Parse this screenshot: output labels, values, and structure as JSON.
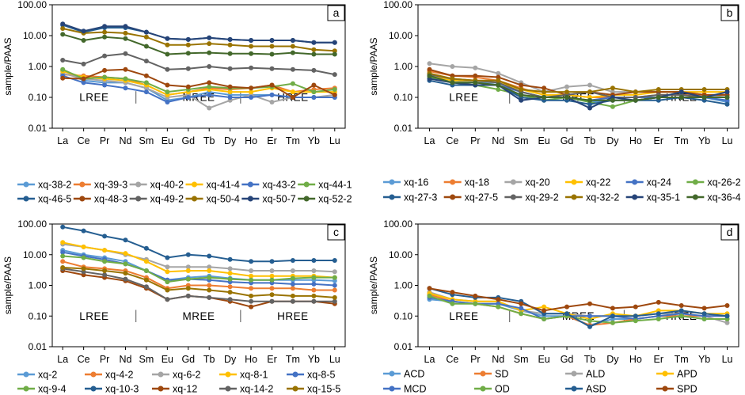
{
  "chart_data": [
    {
      "type": "line",
      "panel_label": "a",
      "ylabel": "sample/PAAS",
      "yscale": "log",
      "ylim": [
        0.01,
        100
      ],
      "yticks": [
        "100.00",
        "10.00",
        "1.00",
        "0.10",
        "0.01"
      ],
      "categories": [
        "La",
        "Ce",
        "Pr",
        "Nd",
        "Sm",
        "Eu",
        "Gd",
        "Tb",
        "Dy",
        "Ho",
        "Er",
        "Tm",
        "Yb",
        "Lu"
      ],
      "groups": [
        "LREE",
        "MREE",
        "HREE"
      ],
      "series": [
        {
          "name": "xq-38-2",
          "color": "#5b9bd5",
          "values": [
            0.75,
            0.35,
            0.3,
            0.3,
            0.2,
            0.08,
            0.1,
            0.15,
            0.12,
            0.12,
            0.12,
            0.1,
            0.1,
            0.1
          ]
        },
        {
          "name": "xq-39-3",
          "color": "#ed7d31",
          "values": [
            0.55,
            0.5,
            0.45,
            0.4,
            0.25,
            0.12,
            0.15,
            0.2,
            0.18,
            0.2,
            0.25,
            0.15,
            0.18,
            0.2
          ]
        },
        {
          "name": "xq-40-2",
          "color": "#a5a5a5",
          "values": [
            0.6,
            0.4,
            0.35,
            0.3,
            0.2,
            0.1,
            0.12,
            0.045,
            0.08,
            0.12,
            0.07,
            0.1,
            0.1,
            0.12
          ]
        },
        {
          "name": "xq-41-4",
          "color": "#ffc000",
          "values": [
            0.7,
            0.45,
            0.4,
            0.35,
            0.25,
            0.12,
            0.15,
            0.18,
            0.15,
            0.15,
            0.2,
            0.15,
            0.15,
            0.15
          ]
        },
        {
          "name": "xq-43-2",
          "color": "#4472c4",
          "values": [
            0.5,
            0.3,
            0.25,
            0.2,
            0.15,
            0.07,
            0.1,
            0.12,
            0.1,
            0.1,
            0.12,
            0.1,
            0.1,
            0.1
          ]
        },
        {
          "name": "xq-44-1",
          "color": "#70ad47",
          "values": [
            0.8,
            0.4,
            0.45,
            0.4,
            0.3,
            0.15,
            0.18,
            0.22,
            0.2,
            0.2,
            0.22,
            0.28,
            0.15,
            0.18
          ]
        },
        {
          "name": "xq-46-5",
          "color": "#255e91",
          "values": [
            22,
            13,
            18,
            18,
            13,
            8,
            7.5,
            8.5,
            7.5,
            7,
            7,
            7,
            6,
            6
          ]
        },
        {
          "name": "xq-48-3",
          "color": "#9e480e",
          "values": [
            0.42,
            0.4,
            0.75,
            0.8,
            0.5,
            0.25,
            0.22,
            0.3,
            0.22,
            0.2,
            0.25,
            0.1,
            0.25,
            0.12
          ]
        },
        {
          "name": "xq-49-2",
          "color": "#636363",
          "values": [
            1.6,
            1.2,
            2.2,
            2.6,
            1.5,
            0.8,
            0.85,
            1.0,
            0.85,
            0.9,
            0.85,
            0.8,
            0.75,
            0.55
          ]
        },
        {
          "name": "xq-50-4",
          "color": "#997300",
          "values": [
            17,
            12,
            13,
            12,
            9,
            5,
            5,
            5.5,
            5,
            4.5,
            4.5,
            4.5,
            3.5,
            3.2
          ]
        },
        {
          "name": "xq-50-7",
          "color": "#264478",
          "values": [
            24,
            14,
            20,
            20,
            13,
            8,
            7.5,
            8.5,
            7.5,
            7,
            7,
            7,
            6,
            6
          ]
        },
        {
          "name": "xq-52-2",
          "color": "#43682b",
          "values": [
            11,
            7,
            9,
            8,
            4.5,
            2.5,
            2.7,
            2.8,
            2.6,
            2.6,
            2.5,
            2.8,
            2.5,
            2.5
          ]
        }
      ]
    },
    {
      "type": "line",
      "panel_label": "b",
      "ylabel": "sample/PAAS",
      "yscale": "log",
      "ylim": [
        0.01,
        100
      ],
      "yticks": [
        "100.00",
        "10.00",
        "1.00",
        "0.10",
        "0.01"
      ],
      "categories": [
        "La",
        "Ce",
        "Pr",
        "Nd",
        "Sm",
        "Eu",
        "Gd",
        "Tb",
        "Dy",
        "Ho",
        "Er",
        "Tm",
        "Yb",
        "Lu"
      ],
      "groups": [
        "LREE",
        "MREE",
        "HREE"
      ],
      "series": [
        {
          "name": "xq-16",
          "color": "#5b9bd5",
          "values": [
            0.6,
            0.35,
            0.3,
            0.3,
            0.15,
            0.1,
            0.1,
            0.07,
            0.08,
            0.08,
            0.1,
            0.1,
            0.1,
            0.07
          ]
        },
        {
          "name": "xq-18",
          "color": "#ed7d31",
          "values": [
            0.7,
            0.5,
            0.45,
            0.35,
            0.2,
            0.12,
            0.12,
            0.1,
            0.1,
            0.1,
            0.12,
            0.12,
            0.12,
            0.12
          ]
        },
        {
          "name": "xq-20",
          "color": "#a5a5a5",
          "values": [
            1.25,
            1.0,
            0.9,
            0.6,
            0.3,
            0.15,
            0.22,
            0.25,
            0.15,
            0.15,
            0.15,
            0.15,
            0.12,
            0.1
          ]
        },
        {
          "name": "xq-22",
          "color": "#ffc000",
          "values": [
            0.5,
            0.35,
            0.35,
            0.3,
            0.18,
            0.12,
            0.12,
            0.1,
            0.12,
            0.12,
            0.15,
            0.15,
            0.15,
            0.15
          ]
        },
        {
          "name": "xq-24",
          "color": "#4472c4",
          "values": [
            0.5,
            0.3,
            0.3,
            0.25,
            0.15,
            0.1,
            0.1,
            0.08,
            0.1,
            0.1,
            0.1,
            0.1,
            0.1,
            0.08
          ]
        },
        {
          "name": "xq-26-2",
          "color": "#70ad47",
          "values": [
            0.45,
            0.3,
            0.25,
            0.18,
            0.12,
            0.08,
            0.1,
            0.07,
            0.05,
            0.08,
            0.1,
            0.1,
            0.1,
            0.1
          ]
        },
        {
          "name": "xq-27-3",
          "color": "#255e91",
          "values": [
            0.35,
            0.25,
            0.25,
            0.25,
            0.1,
            0.08,
            0.08,
            0.06,
            0.08,
            0.08,
            0.08,
            0.1,
            0.08,
            0.06
          ]
        },
        {
          "name": "xq-27-5",
          "color": "#9e480e",
          "values": [
            0.8,
            0.5,
            0.5,
            0.45,
            0.25,
            0.2,
            0.12,
            0.15,
            0.12,
            0.15,
            0.15,
            0.15,
            0.12,
            0.12
          ]
        },
        {
          "name": "xq-29-2",
          "color": "#636363",
          "values": [
            0.55,
            0.4,
            0.35,
            0.3,
            0.15,
            0.1,
            0.12,
            0.15,
            0.1,
            0.1,
            0.12,
            0.12,
            0.1,
            0.1
          ]
        },
        {
          "name": "xq-32-2",
          "color": "#997300",
          "values": [
            0.6,
            0.4,
            0.35,
            0.35,
            0.18,
            0.15,
            0.15,
            0.15,
            0.2,
            0.15,
            0.18,
            0.18,
            0.18,
            0.18
          ]
        },
        {
          "name": "xq-35-1",
          "color": "#264478",
          "values": [
            0.4,
            0.3,
            0.25,
            0.25,
            0.08,
            0.1,
            0.1,
            0.045,
            0.1,
            0.08,
            0.1,
            0.15,
            0.1,
            0.15
          ]
        },
        {
          "name": "xq-36-4",
          "color": "#43682b",
          "values": [
            0.5,
            0.3,
            0.3,
            0.25,
            0.12,
            0.1,
            0.1,
            0.08,
            0.08,
            0.08,
            0.1,
            0.1,
            0.1,
            0.1
          ]
        }
      ]
    },
    {
      "type": "line",
      "panel_label": "c",
      "ylabel": "sample/PAAS",
      "yscale": "log",
      "ylim": [
        0.01,
        100
      ],
      "yticks": [
        "100.00",
        "10.00",
        "1.00",
        "0.10",
        "0.01"
      ],
      "categories": [
        "La",
        "Ce",
        "Pr",
        "Nd",
        "Sm",
        "Eu",
        "Gd",
        "Tb",
        "Dy",
        "Ho",
        "Er",
        "Tm",
        "Yb",
        "Lu"
      ],
      "groups": [
        "LREE",
        "MREE",
        "HREE"
      ],
      "series": [
        {
          "name": "xq-2",
          "color": "#5b9bd5",
          "values": [
            14,
            10,
            8,
            6,
            3,
            1.5,
            1.8,
            2,
            1.7,
            1.5,
            1.5,
            1.5,
            1.5,
            1.4
          ]
        },
        {
          "name": "xq-4-2",
          "color": "#ed7d31",
          "values": [
            6,
            4,
            3.5,
            3,
            1.8,
            0.8,
            1,
            1,
            0.9,
            0.8,
            0.8,
            0.8,
            0.7,
            0.7
          ]
        },
        {
          "name": "xq-6-2",
          "color": "#a5a5a5",
          "values": [
            22,
            18,
            14,
            10,
            7,
            4,
            4,
            4,
            3.5,
            3,
            3,
            3,
            3,
            2.8
          ]
        },
        {
          "name": "xq-8-1",
          "color": "#ffc000",
          "values": [
            25,
            18,
            14,
            11,
            6,
            2.8,
            3,
            3,
            2.5,
            2,
            2,
            2,
            2,
            1.8
          ]
        },
        {
          "name": "xq-8-5",
          "color": "#4472c4",
          "values": [
            12,
            9,
            7,
            5,
            3,
            1.5,
            1.6,
            1.5,
            1.3,
            1.2,
            1.2,
            1.1,
            1.1,
            1.0
          ]
        },
        {
          "name": "xq-9-4",
          "color": "#70ad47",
          "values": [
            9,
            8,
            6,
            5,
            3,
            1.3,
            1.6,
            1.8,
            1.6,
            1.5,
            1.5,
            1.7,
            1.8,
            1.8
          ]
        },
        {
          "name": "xq-10-3",
          "color": "#255e91",
          "values": [
            80,
            60,
            40,
            30,
            16,
            8,
            10,
            9,
            7,
            6,
            6,
            6.5,
            6.5,
            6.5
          ]
        },
        {
          "name": "xq-12",
          "color": "#9e480e",
          "values": [
            3,
            2.2,
            1.8,
            1.4,
            0.8,
            0.35,
            0.45,
            0.4,
            0.3,
            0.2,
            0.3,
            0.3,
            0.3,
            0.25
          ]
        },
        {
          "name": "xq-14-2",
          "color": "#636363",
          "values": [
            3.5,
            2.8,
            2.2,
            1.6,
            0.9,
            0.35,
            0.45,
            0.4,
            0.35,
            0.3,
            0.3,
            0.3,
            0.3,
            0.3
          ]
        },
        {
          "name": "xq-15-5",
          "color": "#997300",
          "values": [
            3.8,
            3.5,
            3,
            2.5,
            1.5,
            0.7,
            0.8,
            0.7,
            0.6,
            0.45,
            0.5,
            0.45,
            0.45,
            0.4
          ]
        }
      ]
    },
    {
      "type": "line",
      "panel_label": "d",
      "ylabel": "sample/PAAS",
      "yscale": "log",
      "ylim": [
        0.01,
        100
      ],
      "yticks": [
        "100.00",
        "10.00",
        "1.00",
        "0.10",
        "0.01"
      ],
      "categories": [
        "La",
        "Ce",
        "Pr",
        "Nd",
        "Sm",
        "Eu",
        "Gd",
        "Tb",
        "Dy",
        "Ho",
        "Er",
        "Tm",
        "Yb",
        "Lu"
      ],
      "groups": [
        "LREE",
        "MREE",
        "HREE"
      ],
      "series": [
        {
          "name": "ACD",
          "color": "#5b9bd5",
          "values": [
            0.35,
            0.3,
            0.25,
            0.25,
            0.15,
            0.1,
            0.1,
            0.05,
            0.08,
            0.08,
            0.1,
            0.1,
            0.08,
            0.08
          ]
        },
        {
          "name": "SD",
          "color": "#ed7d31",
          "values": [
            0.5,
            0.3,
            0.25,
            0.2,
            0.12,
            0.08,
            0.1,
            0.05,
            0.06,
            0.08,
            0.1,
            0.1,
            0.1,
            0.1
          ]
        },
        {
          "name": "ALD",
          "color": "#a5a5a5",
          "values": [
            0.6,
            0.35,
            0.3,
            0.3,
            0.15,
            0.12,
            0.12,
            0.1,
            0.1,
            0.1,
            0.12,
            0.12,
            0.1,
            0.06
          ]
        },
        {
          "name": "APD",
          "color": "#ffc000",
          "values": [
            0.55,
            0.35,
            0.3,
            0.3,
            0.15,
            0.2,
            0.12,
            0.08,
            0.12,
            0.1,
            0.15,
            0.15,
            0.12,
            0.12
          ]
        },
        {
          "name": "MCD",
          "color": "#4472c4",
          "values": [
            0.4,
            0.3,
            0.25,
            0.25,
            0.18,
            0.08,
            0.1,
            0.1,
            0.1,
            0.08,
            0.1,
            0.12,
            0.1,
            0.1
          ]
        },
        {
          "name": "OD",
          "color": "#70ad47",
          "values": [
            0.45,
            0.25,
            0.25,
            0.2,
            0.12,
            0.08,
            0.1,
            0.07,
            0.06,
            0.07,
            0.08,
            0.1,
            0.08,
            0.08
          ]
        },
        {
          "name": "ASD",
          "color": "#255e91",
          "values": [
            0.8,
            0.5,
            0.4,
            0.4,
            0.3,
            0.12,
            0.12,
            0.045,
            0.1,
            0.1,
            0.12,
            0.15,
            0.12,
            0.1
          ]
        },
        {
          "name": "SPD",
          "color": "#9e480e",
          "values": [
            0.8,
            0.6,
            0.45,
            0.35,
            0.25,
            0.15,
            0.2,
            0.25,
            0.18,
            0.2,
            0.28,
            0.22,
            0.18,
            0.22
          ]
        }
      ]
    }
  ]
}
